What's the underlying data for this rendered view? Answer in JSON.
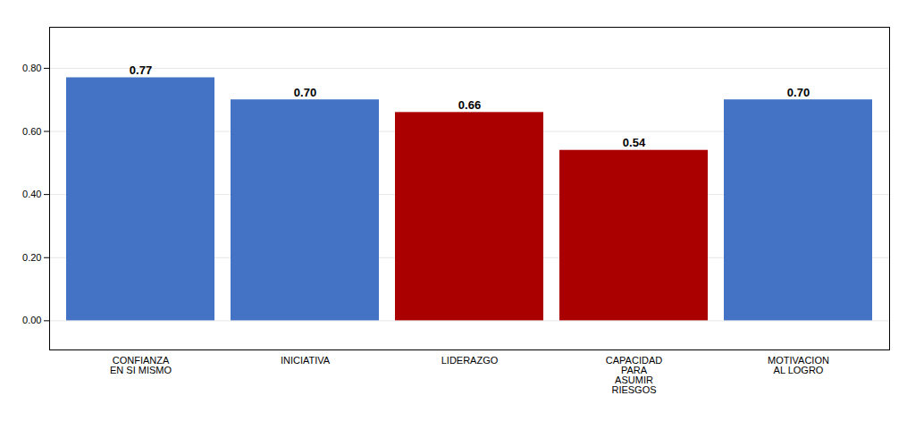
{
  "chart_data": {
    "type": "bar",
    "categories": [
      "CONFIANZA\nEN SI MISMO",
      "INICIATIVA",
      "LIDERAZGO",
      "CAPACIDAD\nPARA\nASUMIR\nRIESGOS",
      "MOTIVACION\nAL LOGRO"
    ],
    "values": [
      0.77,
      0.7,
      0.66,
      0.54,
      0.7
    ],
    "value_labels": [
      "0.77",
      "0.70",
      "0.66",
      "0.54",
      "0.70"
    ],
    "colors": [
      "#4472C4",
      "#4472C4",
      "#AA0000",
      "#AA0000",
      "#4472C4"
    ],
    "ylim": [
      -0.0924,
      0.93
    ],
    "yticks": [
      {
        "value": 0.0,
        "label": "0.00"
      },
      {
        "value": 0.2,
        "label": "0.20"
      },
      {
        "value": 0.4,
        "label": "0.40"
      },
      {
        "value": 0.6,
        "label": "0.60"
      },
      {
        "value": 0.8,
        "label": "0.80"
      }
    ],
    "grid": true,
    "data_labels": true
  }
}
